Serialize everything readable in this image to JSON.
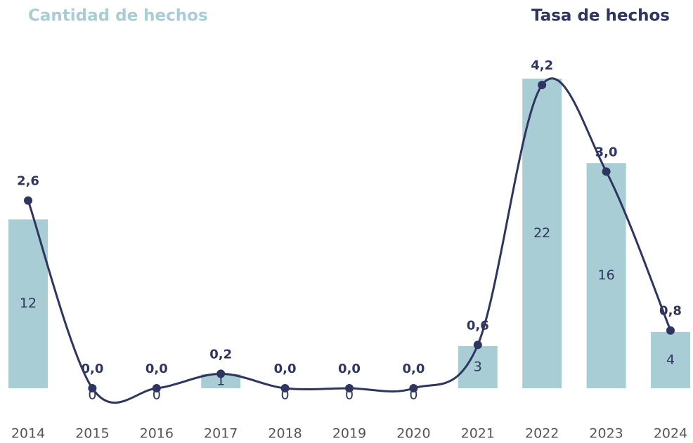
{
  "chart_data": {
    "type": "bar-line",
    "categories": [
      "2014",
      "2015",
      "2016",
      "2017",
      "2018",
      "2019",
      "2020",
      "2021",
      "2022",
      "2023",
      "2024"
    ],
    "series": [
      {
        "name": "Cantidad de hechos",
        "color": "#a8cdd4",
        "type": "bar",
        "values": [
          12,
          0,
          0,
          1,
          0,
          0,
          0,
          3,
          22,
          16,
          4
        ]
      },
      {
        "name": "Tasa de hechos",
        "color": "#2e3560",
        "type": "line",
        "axis": "y2",
        "values": [
          2.6,
          0,
          0,
          0.2,
          0,
          0,
          0,
          0.6,
          4.2,
          3.0,
          0.8
        ],
        "value_labels": [
          "2,6",
          "0,0",
          "0,0",
          "0,2",
          "0,0",
          "0,0",
          "0,0",
          "0,6",
          "4,2",
          "3,0",
          "0,8"
        ]
      }
    ]
  }
}
